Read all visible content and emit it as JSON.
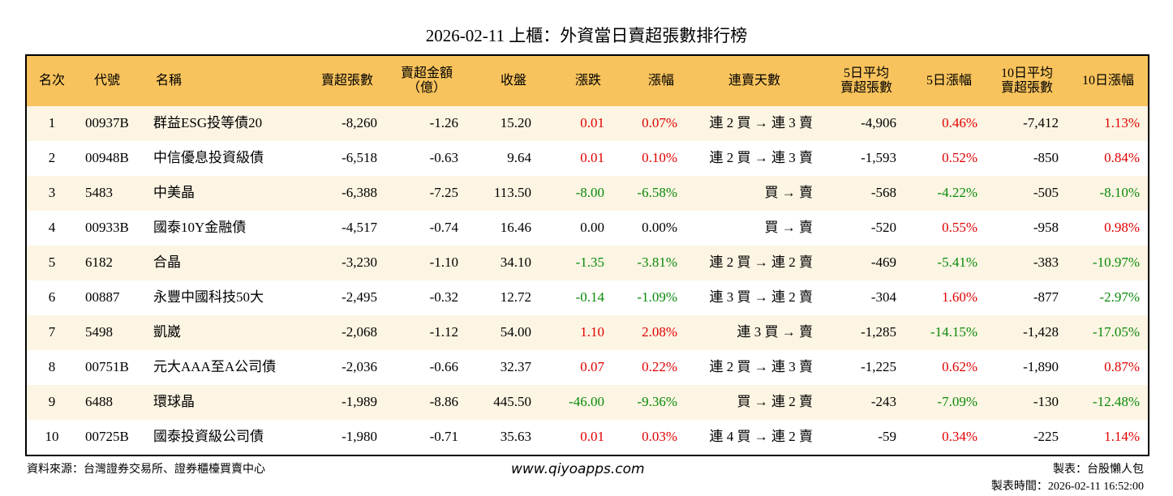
{
  "header": {
    "title": "2026-02-11 上櫃：外資當日賣超張數排行榜"
  },
  "table": {
    "headers": [
      [
        "名次"
      ],
      [
        "代號"
      ],
      [
        "名稱"
      ],
      [
        "賣超張數"
      ],
      [
        "賣超金額",
        "（億）"
      ],
      [
        "收盤"
      ],
      [
        "漲跌"
      ],
      [
        "漲幅"
      ],
      [
        "連賣天數"
      ],
      [
        "5日平均",
        "賣超張數"
      ],
      [
        "5日漲幅"
      ],
      [
        "10日平均",
        "賣超張數"
      ],
      [
        "10日漲幅"
      ]
    ],
    "rows": [
      [
        "1",
        "00937B",
        "群益ESG投等債20",
        "-8,260",
        "-1.26",
        "15.20",
        "0.01",
        "0.07%",
        "連 2 買 → 連 3 賣",
        "-4,906",
        "0.46%",
        "-7,412",
        "1.13%"
      ],
      [
        "2",
        "00948B",
        "中信優息投資級債",
        "-6,518",
        "-0.63",
        "9.64",
        "0.01",
        "0.10%",
        "連 2 買 → 連 3 賣",
        "-1,593",
        "0.52%",
        "-850",
        "0.84%"
      ],
      [
        "3",
        "5483",
        "中美晶",
        "-6,388",
        "-7.25",
        "113.50",
        "-8.00",
        "-6.58%",
        "買 → 賣",
        "-568",
        "-4.22%",
        "-505",
        "-8.10%"
      ],
      [
        "4",
        "00933B",
        "國泰10Y金融債",
        "-4,517",
        "-0.74",
        "16.46",
        "0.00",
        "0.00%",
        "買 → 賣",
        "-520",
        "0.55%",
        "-958",
        "0.98%"
      ],
      [
        "5",
        "6182",
        "合晶",
        "-3,230",
        "-1.10",
        "34.10",
        "-1.35",
        "-3.81%",
        "連 2 買 → 連 2 賣",
        "-469",
        "-5.41%",
        "-383",
        "-10.97%"
      ],
      [
        "6",
        "00887",
        "永豐中國科技50大",
        "-2,495",
        "-0.32",
        "12.72",
        "-0.14",
        "-1.09%",
        "連 3 買 → 連 2 賣",
        "-304",
        "1.60%",
        "-877",
        "-2.97%"
      ],
      [
        "7",
        "5498",
        "凱崴",
        "-2,068",
        "-1.12",
        "54.00",
        "1.10",
        "2.08%",
        "連 3 買 → 賣",
        "-1,285",
        "-14.15%",
        "-1,428",
        "-17.05%"
      ],
      [
        "8",
        "00751B",
        "元大AAA至A公司債",
        "-2,036",
        "-0.66",
        "32.37",
        "0.07",
        "0.22%",
        "連 2 買 → 連 3 賣",
        "-1,225",
        "0.62%",
        "-1,890",
        "0.87%"
      ],
      [
        "9",
        "6488",
        "環球晶",
        "-1,989",
        "-8.86",
        "445.50",
        "-46.00",
        "-9.36%",
        "買 → 連 2 賣",
        "-243",
        "-7.09%",
        "-130",
        "-12.48%"
      ],
      [
        "10",
        "00725B",
        "國泰投資級公司債",
        "-1,980",
        "-0.71",
        "35.63",
        "0.01",
        "0.03%",
        "連 4 買 → 連 2 賣",
        "-59",
        "0.34%",
        "-225",
        "1.14%"
      ]
    ]
  },
  "footer": {
    "source": "資料來源：台灣證券交易所、證券櫃檯買賣中心",
    "website": "www.qiyoapps.com",
    "author": "製表：台股懶人包",
    "timestamp": "製表時間：2026-02-11 16:52:00"
  }
}
